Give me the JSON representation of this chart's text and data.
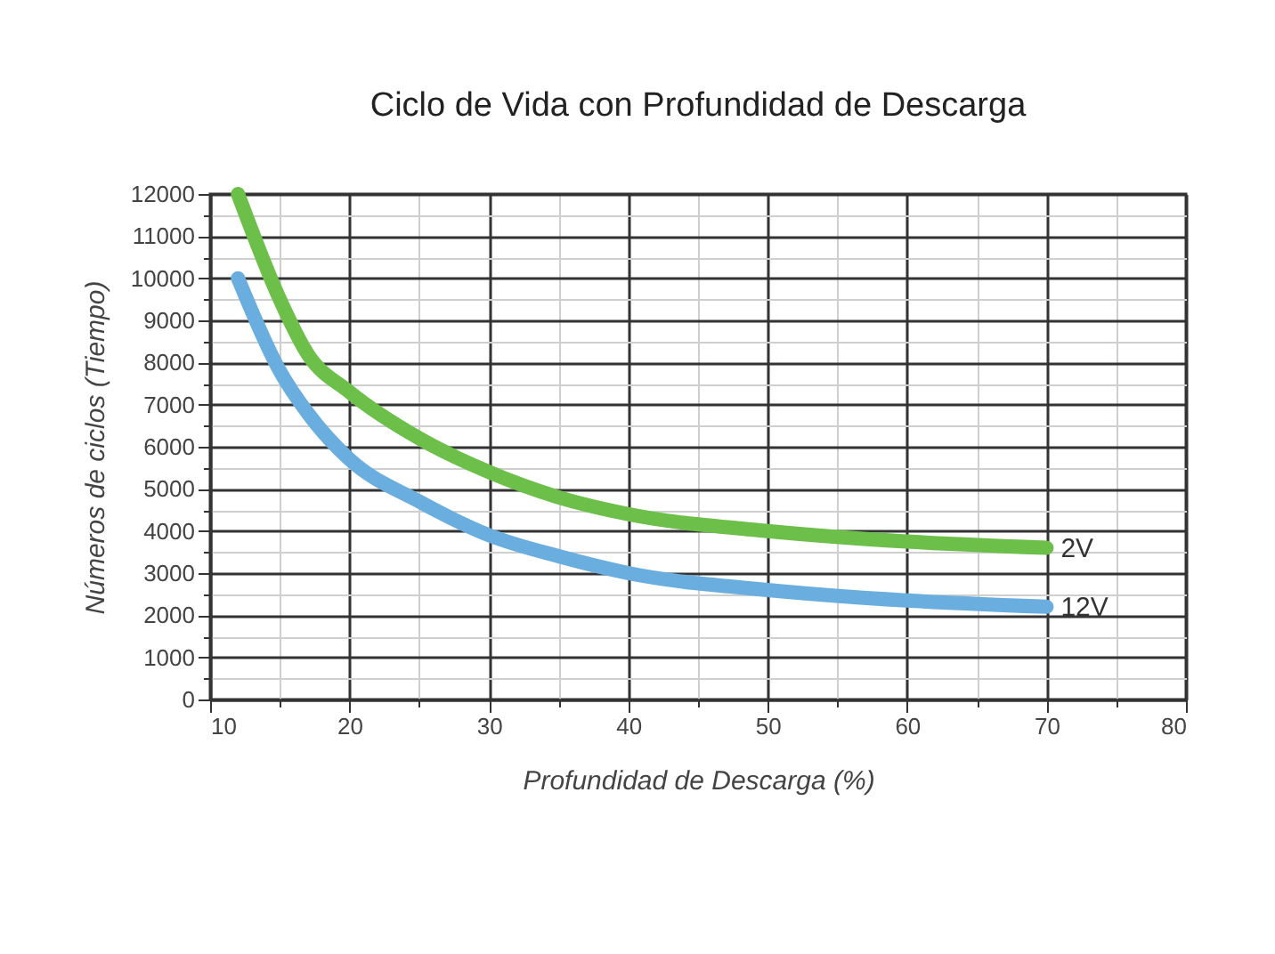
{
  "chart_data": {
    "type": "line",
    "title": "Ciclo de Vida con Profundidad de Descarga",
    "xlabel": "Profundidad de Descarga (%)",
    "ylabel": "Números de ciclos (Tiempo)",
    "x": [
      12,
      15,
      17,
      20,
      25,
      30,
      35,
      40,
      50,
      60,
      70
    ],
    "series": [
      {
        "name": "2V",
        "color": "#6cc04a",
        "values": [
          12000,
          9500,
          8200,
          7300,
          6200,
          5400,
          4800,
          4400,
          4000,
          3750,
          3600
        ]
      },
      {
        "name": "12V",
        "color": "#6aaee0",
        "values": [
          10000,
          7800,
          6800,
          5700,
          4700,
          3900,
          3400,
          3000,
          2600,
          2350,
          2200
        ]
      }
    ],
    "xlim": [
      10,
      80
    ],
    "ylim": [
      0,
      12000
    ],
    "xticks": [
      10,
      {
        "value": 15,
        "label": null
      },
      20,
      {
        "value": 25,
        "label": null
      },
      30,
      {
        "value": 35,
        "label": null
      },
      40,
      {
        "value": 45,
        "label": null
      },
      50,
      {
        "value": 55,
        "label": null
      },
      60,
      {
        "value": 65,
        "label": null
      },
      70,
      {
        "value": 75,
        "label": null
      },
      80
    ],
    "yticks": [
      0,
      {
        "value": 500,
        "label": null
      },
      1000,
      {
        "value": 1500,
        "label": null
      },
      2000,
      {
        "value": 2500,
        "label": null
      },
      3000,
      {
        "value": 3500,
        "label": null
      },
      4000,
      {
        "value": 4500,
        "label": null
      },
      5000,
      {
        "value": 5500,
        "label": null
      },
      6000,
      {
        "value": 6500,
        "label": null
      },
      7000,
      {
        "value": 7500,
        "label": null
      },
      8000,
      {
        "value": 8500,
        "label": null
      },
      9000,
      {
        "value": 9500,
        "label": null
      },
      10000,
      {
        "value": 10500,
        "label": null
      },
      11000,
      {
        "value": 11500,
        "label": null
      },
      12000
    ],
    "grid": true,
    "legend": false,
    "line_style": "solid"
  }
}
